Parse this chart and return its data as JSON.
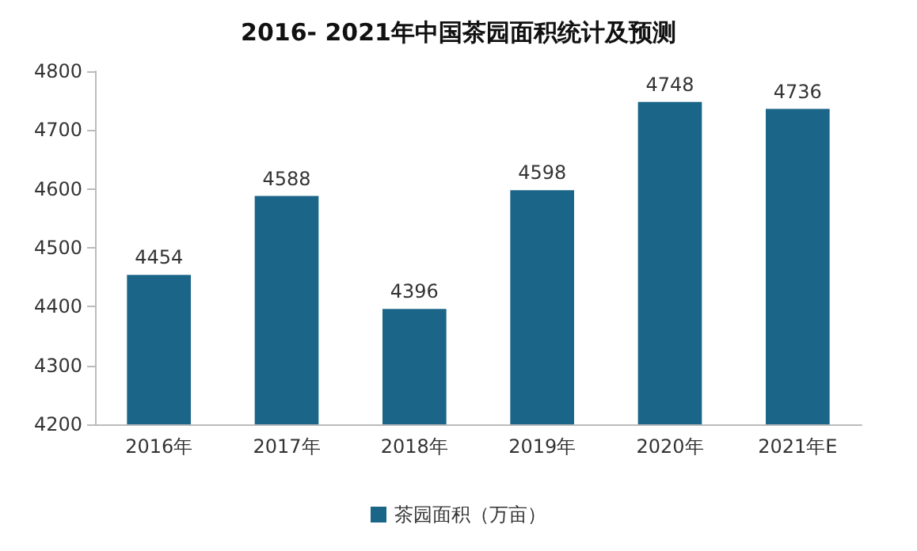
{
  "chart_data": {
    "type": "bar",
    "title": "2016- 2021年中国茶园面积统计及预测",
    "categories": [
      "2016年",
      "2017年",
      "2018年",
      "2019年",
      "2020年",
      "2021年E"
    ],
    "series": [
      {
        "name": "茶园面积（万亩）",
        "color": "#1b6688",
        "values": [
          4454,
          4588,
          4396,
          4598,
          4748,
          4736
        ]
      }
    ],
    "ylim": [
      4200,
      4800
    ],
    "yticks": [
      4200,
      4300,
      4400,
      4500,
      4600,
      4700,
      4800
    ],
    "data_labels": true,
    "legend": "bottom",
    "grid": false
  }
}
